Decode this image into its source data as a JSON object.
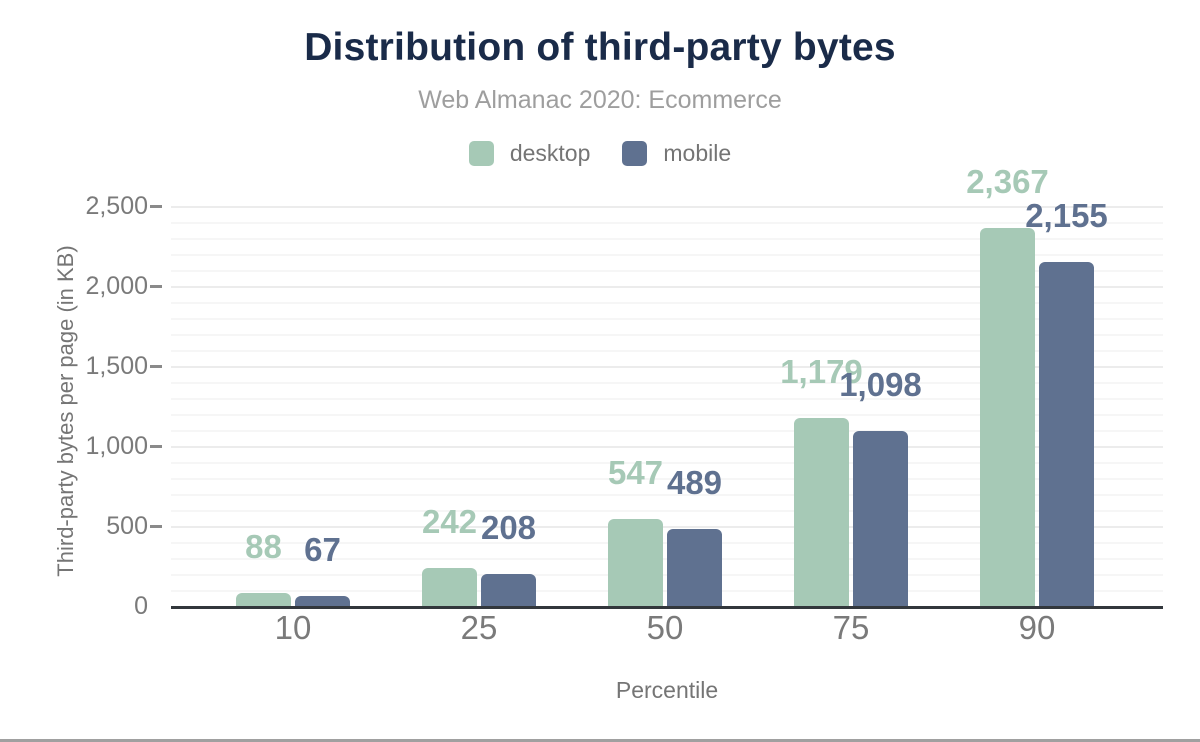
{
  "page": {
    "title": "Distribution of third-party bytes",
    "subtitle": "Web Almanac 2020: Ecommerce"
  },
  "legend": {
    "items": [
      {
        "label": "desktop",
        "color": "#a6c9b6"
      },
      {
        "label": "mobile",
        "color": "#5f7190"
      }
    ]
  },
  "chart_data": {
    "type": "bar",
    "title": "Distribution of third-party bytes",
    "subtitle": "Web Almanac 2020: Ecommerce",
    "categories": [
      "10",
      "25",
      "50",
      "75",
      "90"
    ],
    "series": [
      {
        "name": "desktop",
        "color": "#a6c9b6",
        "values": [
          88,
          242,
          547,
          1179,
          2367
        ],
        "labels": [
          "88",
          "242",
          "547",
          "1,179",
          "2,367"
        ]
      },
      {
        "name": "mobile",
        "color": "#5f7190",
        "values": [
          67,
          208,
          489,
          1098,
          2155
        ],
        "labels": [
          "67",
          "208",
          "489",
          "1,098",
          "2,155"
        ]
      }
    ],
    "xlabel": "Percentile",
    "ylabel": "Third-party bytes per page (in KB)",
    "ylim": [
      0,
      2500
    ],
    "y_major_step": 500,
    "y_minor_step": 100,
    "y_tick_labels": [
      "0",
      "500",
      "1,000",
      "1,500",
      "2,000",
      "2,500"
    ],
    "grid": "horizontal-on",
    "legend_position": "top-center"
  },
  "colors": {
    "title": "#1a2b49",
    "subtitle": "#9e9e9e",
    "axis_text": "#7a7a7a",
    "axis_line": "#32373c",
    "grid_major": "#ececec",
    "grid_minor": "#f6f6f6",
    "bottom_rule": "#a0a0a0",
    "background": "#ffffff"
  }
}
